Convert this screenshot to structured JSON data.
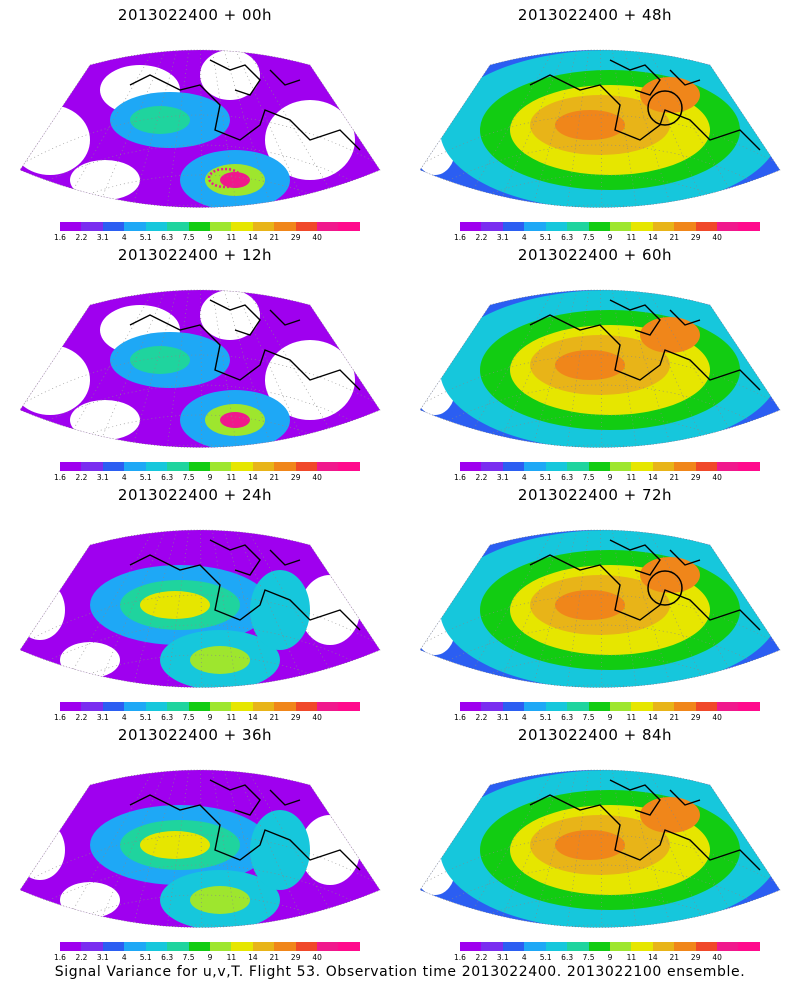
{
  "panels": [
    {
      "title": "2013022400  +  00h",
      "lead": "00h",
      "variance": "low"
    },
    {
      "title": "2013022400  +  48h",
      "lead": "48h",
      "variance": "high",
      "circle": true
    },
    {
      "title": "2013022400  +  12h",
      "lead": "12h",
      "variance": "low"
    },
    {
      "title": "2013022400  +  60h",
      "lead": "60h",
      "variance": "high"
    },
    {
      "title": "2013022400  +  24h",
      "lead": "24h",
      "variance": "mid"
    },
    {
      "title": "2013022400  +  72h",
      "lead": "72h",
      "variance": "high",
      "circle": true
    },
    {
      "title": "2013022400  +  36h",
      "lead": "36h",
      "variance": "mid"
    },
    {
      "title": "2013022400  +  84h",
      "lead": "84h",
      "variance": "high"
    }
  ],
  "colorbar": {
    "labels": [
      "1.6",
      "2.2",
      "3.1",
      "4",
      "5.1",
      "6.3",
      "7.5",
      "9",
      "11",
      "14",
      "21",
      "29",
      "40"
    ],
    "colors": [
      "#9f00ef",
      "#7a2ef0",
      "#2b5ef2",
      "#1ea8f6",
      "#16c7dc",
      "#1fd49e",
      "#12cc12",
      "#9ee62e",
      "#e6e600",
      "#e8b418",
      "#f0861a",
      "#f0482a",
      "#f0188c",
      "#ff0a8c"
    ]
  },
  "caption": "Signal Variance for u,v,T. Flight 53. Observation time 2013022400. 2013022100 ensemble."
}
